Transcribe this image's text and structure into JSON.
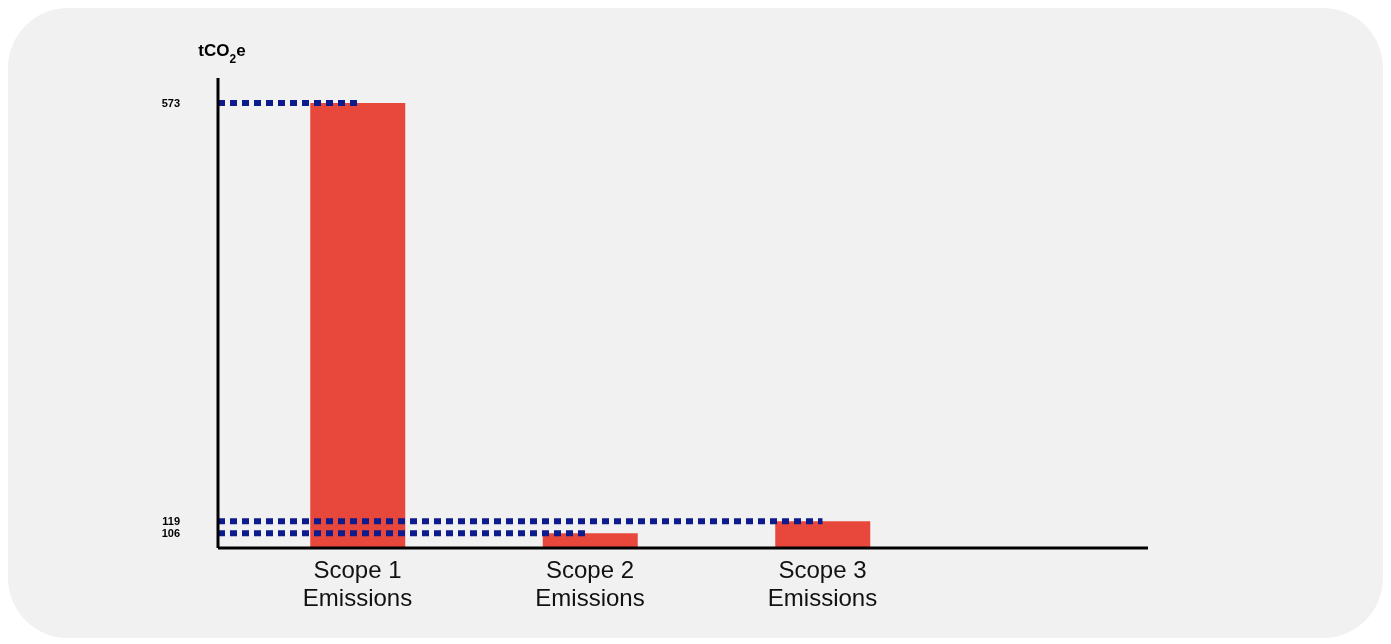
{
  "chart_data": {
    "type": "bar",
    "ylabel": "tCO$_{2}$e",
    "categories": [
      "Scope 1 Emissions",
      "Scope 2 Emissions",
      "Scope 3 Emissions"
    ],
    "values": [
      573,
      106,
      119
    ],
    "color": "#e8473b",
    "ylim": [
      90,
      600
    ],
    "yticks": [
      106,
      119,
      573
    ],
    "ref_lines": [
      {
        "axis": "y",
        "value": 573,
        "color": "#0d1b8c",
        "line_style": "dotted"
      },
      {
        "axis": "y",
        "value": 119,
        "color": "#0d1b8c",
        "line_style": "dotted"
      },
      {
        "axis": "y",
        "value": 106,
        "color": "#0d1b8c",
        "line_style": "dotted"
      }
    ],
    "grid": false,
    "legend": false
  }
}
